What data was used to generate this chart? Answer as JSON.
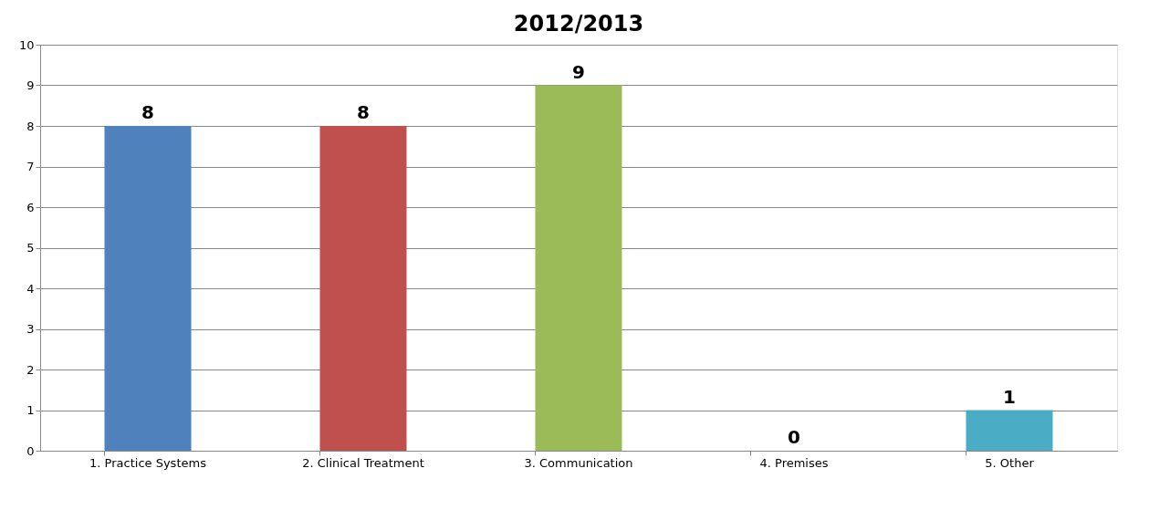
{
  "chart_data": {
    "type": "bar",
    "title": "2012/2013",
    "categories": [
      "1. Practice Systems",
      "2. Clinical Treatment",
      "3. Communication",
      "4. Premises",
      "5. Other"
    ],
    "values": [
      8,
      8,
      9,
      0,
      1
    ],
    "colors": [
      "#4f81bd",
      "#c0504d",
      "#9bbb59",
      "#8064a2",
      "#4bacc6"
    ],
    "ylim": [
      0,
      10
    ],
    "yticks": [
      0,
      1,
      2,
      3,
      4,
      5,
      6,
      7,
      8,
      9,
      10
    ],
    "grid": "y",
    "data_labels": true
  }
}
